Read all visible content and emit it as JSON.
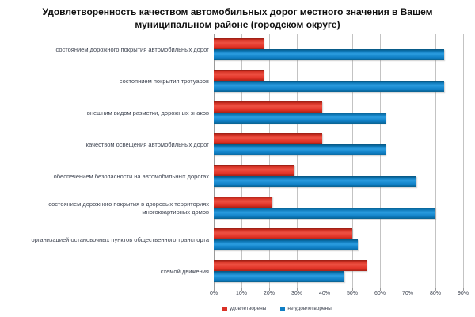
{
  "title": "Удовлетворенность качеством автомобильных дорог местного значения в Вашем муниципальном районе (городском округе)",
  "chart_data": {
    "type": "bar",
    "orientation": "horizontal",
    "title": "Удовлетворенность качеством автомобильных дорог местного значения в Вашем муниципальном районе (городском округе)",
    "categories": [
      "состоянием дорожного покрытия автомобильных дорог",
      "состоянием покрытия тротуаров",
      "внешним видом разметки, дорожных знаков",
      "качеством освещения автомобильных дорог",
      "обеспечением безопасности на автомобильных дорогах",
      "состоянием дорожного покрытия в дворовых территориях многоквартирных домов",
      "организацией остановочных пунктов общественного транспорта",
      "схемой движения"
    ],
    "series": [
      {
        "name": "удовлетворены",
        "color": "#da3126",
        "values": [
          18,
          18,
          39,
          39,
          29,
          21,
          50,
          55
        ]
      },
      {
        "name": "не удовлетворены",
        "color": "#0f7ec4",
        "values": [
          83,
          83,
          62,
          62,
          73,
          80,
          52,
          47
        ]
      }
    ],
    "xlim": [
      0,
      90
    ],
    "xticks": [
      "0%",
      "10%",
      "20%",
      "30%",
      "40%",
      "50%",
      "60%",
      "70%",
      "80%",
      "90%"
    ],
    "grid": true,
    "legend_position": "bottom"
  }
}
